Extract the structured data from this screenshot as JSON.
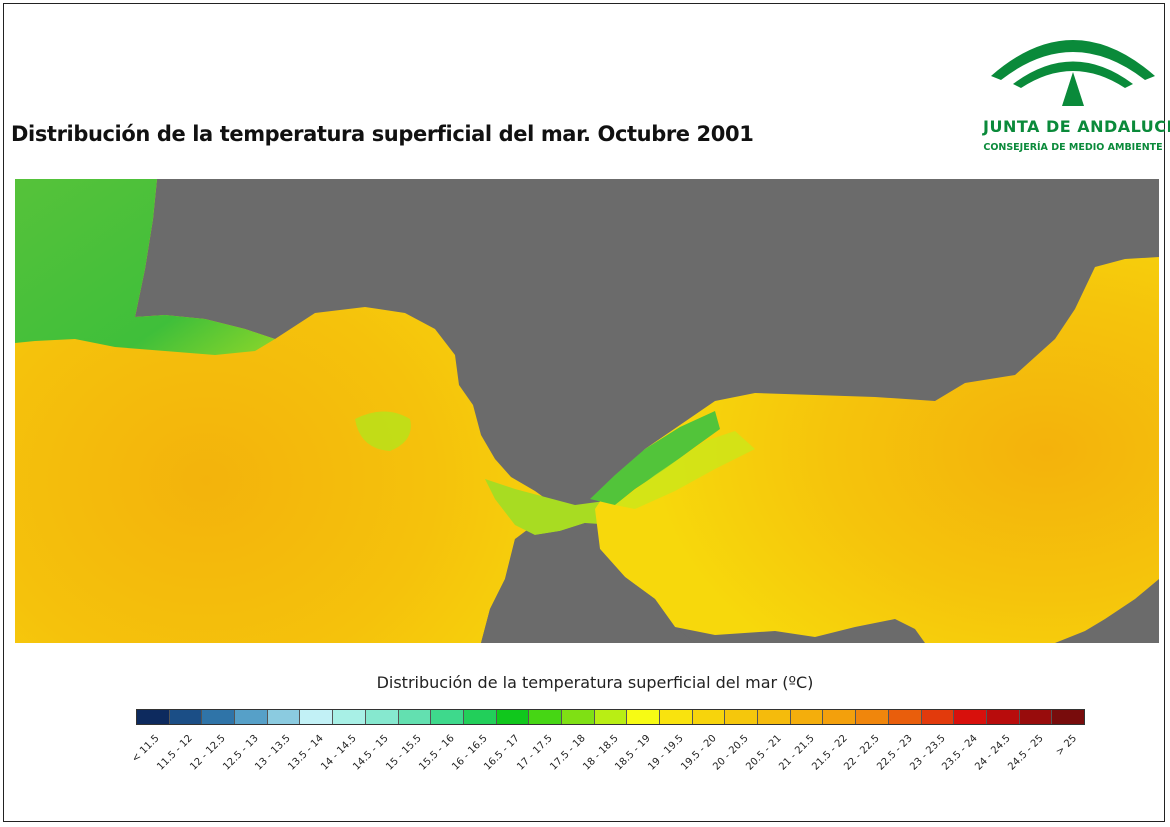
{
  "title": "Distribución de la temperatura superficial del mar. Octubre 2001",
  "logo": {
    "line1": "JUNTA DE ANDALUCIA",
    "line2": "CONSEJERÍA DE MEDIO AMBIENTE",
    "color": "#0a8a3a"
  },
  "map": {
    "land_color": "#6b6b6b",
    "dominant_sea_color": "#f2c000",
    "cool_sea_color": "#3fbf3a"
  },
  "legend": {
    "title": "Distribución de la temperatura superficial del mar (ºC)",
    "classes": [
      {
        "label": "< 11.5",
        "color": "#0d2a5e"
      },
      {
        "label": "11.5 - 12",
        "color": "#1b4e86"
      },
      {
        "label": "12 - 12.5",
        "color": "#2f74a8"
      },
      {
        "label": "12.5 - 13",
        "color": "#56a0c8"
      },
      {
        "label": "13 - 13.5",
        "color": "#8bcbe0"
      },
      {
        "label": "13.5 - 14",
        "color": "#c2f1f6"
      },
      {
        "label": "14 - 14.5",
        "color": "#a8f0e6"
      },
      {
        "label": "14.5 - 15",
        "color": "#86e8cf"
      },
      {
        "label": "15 - 15.5",
        "color": "#63e0b0"
      },
      {
        "label": "15.5 - 16",
        "color": "#3ed98c"
      },
      {
        "label": "16 - 16.5",
        "color": "#22cf5a"
      },
      {
        "label": "16.5 - 17",
        "color": "#10c71c"
      },
      {
        "label": "17 - 17.5",
        "color": "#46d614"
      },
      {
        "label": "17.5 - 18",
        "color": "#7fe014"
      },
      {
        "label": "18 - 18.5",
        "color": "#b9ee14"
      },
      {
        "label": "18.5 - 19",
        "color": "#f7fb14"
      },
      {
        "label": "19 - 19.5",
        "color": "#f9e30e"
      },
      {
        "label": "19.5 - 20",
        "color": "#f7d40c"
      },
      {
        "label": "20 - 20.5",
        "color": "#f5c70c"
      },
      {
        "label": "20.5 - 21",
        "color": "#f5bb0c"
      },
      {
        "label": "21 - 21.5",
        "color": "#f4ae0c"
      },
      {
        "label": "21.5 - 22",
        "color": "#f3a00c"
      },
      {
        "label": "22 - 22.5",
        "color": "#f0860c"
      },
      {
        "label": "22.5 - 23",
        "color": "#e95e0c"
      },
      {
        "label": "23 - 23.5",
        "color": "#e23a0c"
      },
      {
        "label": "23.5 - 24",
        "color": "#d8100c"
      },
      {
        "label": "24 - 24.5",
        "color": "#b80c0c"
      },
      {
        "label": "24.5 - 25",
        "color": "#980c0c"
      },
      {
        "label": "> 25",
        "color": "#780c0c"
      }
    ]
  }
}
